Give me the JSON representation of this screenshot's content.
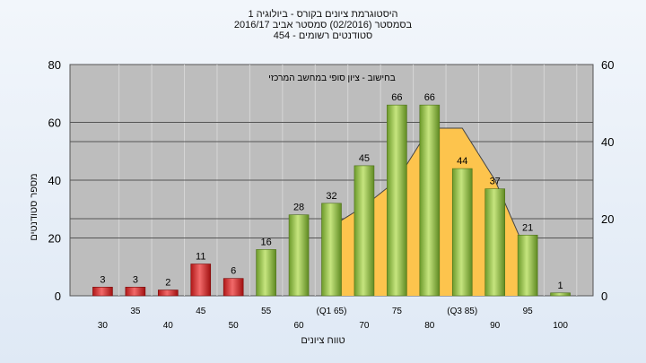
{
  "chart_data": {
    "type": "bar",
    "title": "היסטוגרמת ציונים בקורס - ביולוגיה 1",
    "subtitle1": "בסמסטר  (02/2016)  סמסטר אביב 2016/17",
    "subtitle2": "סטודנטים רשומים - 454",
    "xlabel": "טווח ציונים",
    "ylabel": "מספר סטודנטים",
    "curve_label": "בחישוב - ציון סופי במחשב המרכזי",
    "ylim": [
      0,
      80
    ],
    "yticks": [
      0,
      20,
      40,
      60,
      80
    ],
    "y2lim": [
      0,
      60
    ],
    "y2ticks": [
      0,
      20,
      40,
      60
    ],
    "grid": true,
    "x_tick_labels": [
      "30",
      "35",
      "40",
      "45",
      "50",
      "55",
      "60",
      "(Q1 65)",
      "70",
      "75",
      "80",
      "(Q3 85)",
      "90",
      "95",
      "100"
    ],
    "values": [
      3,
      3,
      2,
      11,
      6,
      16,
      28,
      32,
      45,
      66,
      66,
      44,
      37,
      21,
      1
    ],
    "bar_colors": [
      "#e03030",
      "#e03030",
      "#e03030",
      "#e03030",
      "#e03030",
      "#8fc043",
      "#8fc043",
      "#8fc043",
      "#8fc043",
      "#8fc043",
      "#8fc043",
      "#8fc043",
      "#8fc043",
      "#8fc043",
      "#8fc043"
    ],
    "curve_values": [
      24,
      31,
      40,
      58,
      58,
      40,
      14
    ],
    "curve_start_index": 7,
    "curve_color": "#fdc44d"
  }
}
